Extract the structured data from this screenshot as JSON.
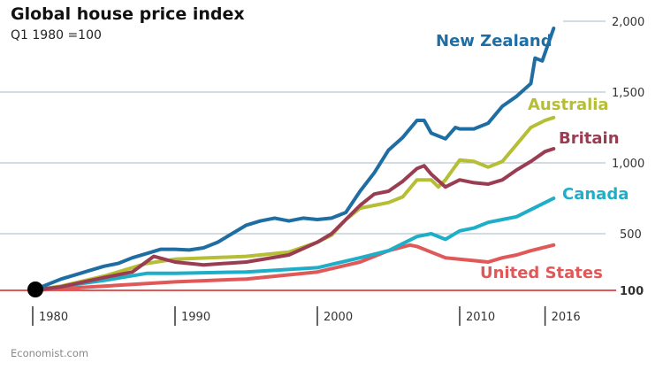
{
  "chart_data": {
    "type": "line",
    "title": "Global house price index",
    "subtitle": "Q1 1980 =100",
    "xlabel": "",
    "ylabel": "",
    "xlim": [
      1980,
      2017
    ],
    "ylim": [
      100,
      2000
    ],
    "grid": true,
    "x_ticks": [
      "1980",
      "1990",
      "2000",
      "2010",
      "2016"
    ],
    "y_ticks": [
      "100",
      "500",
      "1,000",
      "1,500",
      "2,000"
    ],
    "legend": "direct labels at line ends",
    "source": "Economist.com",
    "series": [
      {
        "name": "New Zealand",
        "color": "#1f6ea3",
        "x": [
          1980,
          1981,
          1982,
          1983,
          1984,
          1985,
          1986,
          1987,
          1988,
          1989,
          1990,
          1991,
          1992,
          1993,
          1994,
          1995,
          1996,
          1997,
          1998,
          1999,
          2000,
          2001,
          2002,
          2003,
          2004,
          2005,
          2006,
          2007,
          2007.5,
          2008,
          2009,
          2009.7,
          2010,
          2011,
          2012,
          2013,
          2014,
          2015,
          2015.3,
          2015.8,
          2016.6
        ],
        "y": [
          100,
          140,
          180,
          210,
          240,
          270,
          290,
          330,
          360,
          390,
          390,
          385,
          400,
          440,
          500,
          560,
          590,
          610,
          590,
          610,
          600,
          610,
          650,
          800,
          930,
          1090,
          1180,
          1300,
          1300,
          1210,
          1170,
          1250,
          1240,
          1240,
          1280,
          1400,
          1470,
          1560,
          1740,
          1720,
          1950
        ]
      },
      {
        "name": "Australia",
        "color": "#b5be35",
        "x": [
          1980,
          1982,
          1985,
          1988,
          1990,
          1995,
          1998,
          2000,
          2001,
          2002,
          2003,
          2004,
          2005,
          2006,
          2007,
          2008,
          2008.5,
          2009,
          2010,
          2011,
          2012,
          2013,
          2014,
          2015,
          2016,
          2016.6
        ],
        "y": [
          100,
          130,
          200,
          290,
          320,
          340,
          370,
          440,
          490,
          600,
          680,
          700,
          720,
          760,
          880,
          880,
          830,
          880,
          1020,
          1010,
          970,
          1010,
          1130,
          1250,
          1300,
          1320
        ]
      },
      {
        "name": "Britain",
        "color": "#9a3d52",
        "x": [
          1980,
          1982,
          1985,
          1987,
          1988.5,
          1990,
          1992,
          1995,
          1998,
          2000,
          2001,
          2002,
          2003,
          2004,
          2005,
          2006,
          2007,
          2007.5,
          2008,
          2009,
          2010,
          2011,
          2012,
          2013,
          2014,
          2015,
          2016,
          2016.6
        ],
        "y": [
          100,
          125,
          190,
          230,
          340,
          300,
          280,
          300,
          350,
          440,
          500,
          600,
          700,
          780,
          800,
          870,
          960,
          980,
          920,
          830,
          880,
          860,
          850,
          880,
          950,
          1010,
          1080,
          1100
        ]
      },
      {
        "name": "Canada",
        "color": "#1eaec8",
        "x": [
          1980,
          1985,
          1988,
          1990,
          1995,
          2000,
          2003,
          2005,
          2007,
          2008,
          2009,
          2010,
          2011,
          2012,
          2013,
          2014,
          2015,
          2016,
          2016.6
        ],
        "y": [
          100,
          170,
          220,
          220,
          230,
          260,
          330,
          380,
          480,
          500,
          460,
          520,
          540,
          580,
          600,
          620,
          670,
          720,
          750
        ]
      },
      {
        "name": "United States",
        "color": "#e05858",
        "x": [
          1980,
          1985,
          1990,
          1995,
          2000,
          2003,
          2005,
          2006.5,
          2007,
          2008,
          2009,
          2011,
          2012,
          2013,
          2014,
          2015,
          2016.6
        ],
        "y": [
          100,
          130,
          160,
          180,
          230,
          300,
          380,
          420,
          410,
          370,
          330,
          310,
          300,
          330,
          350,
          380,
          420
        ]
      }
    ]
  }
}
